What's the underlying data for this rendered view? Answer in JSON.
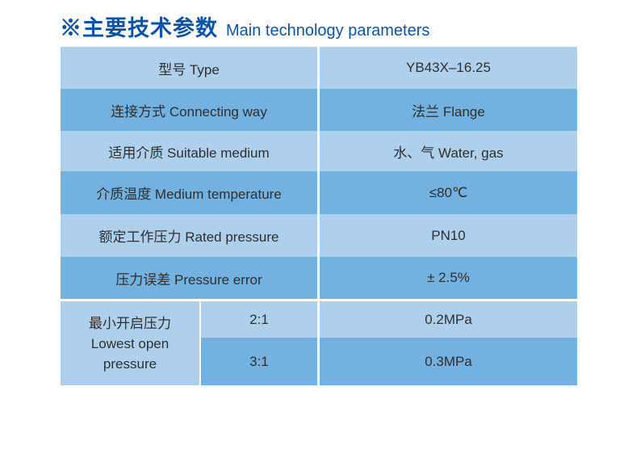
{
  "title": {
    "cn": "※主要技术参数",
    "en": "Main technology parameters"
  },
  "table": {
    "rows": [
      {
        "label": "型号 Type",
        "value": "YB43X–16.25"
      },
      {
        "label": "连接方式 Connecting way",
        "value": "法兰 Flange"
      },
      {
        "label": "适用介质 Suitable medium",
        "value": "水、气 Water, gas"
      },
      {
        "label": "介质温度 Medium temperature",
        "value": "≤80℃"
      },
      {
        "label": "额定工作压力 Rated pressure",
        "value": "PN10"
      },
      {
        "label": "压力误差 Pressure error",
        "value": "± 2.5%"
      }
    ],
    "merged_section": {
      "label_cn": "最小开启压力",
      "label_en_line1": "Lowest open",
      "label_en_line2": "pressure",
      "sub_rows": [
        {
          "ratio": "2:1",
          "value": "0.2MPa"
        },
        {
          "ratio": "3:1",
          "value": "0.3MPa"
        }
      ]
    }
  },
  "colors": {
    "row_light": "#aed0ec",
    "row_dark": "#73b1e0",
    "title_blue": "#0b53a7",
    "table_text": "#2f2f2f"
  }
}
